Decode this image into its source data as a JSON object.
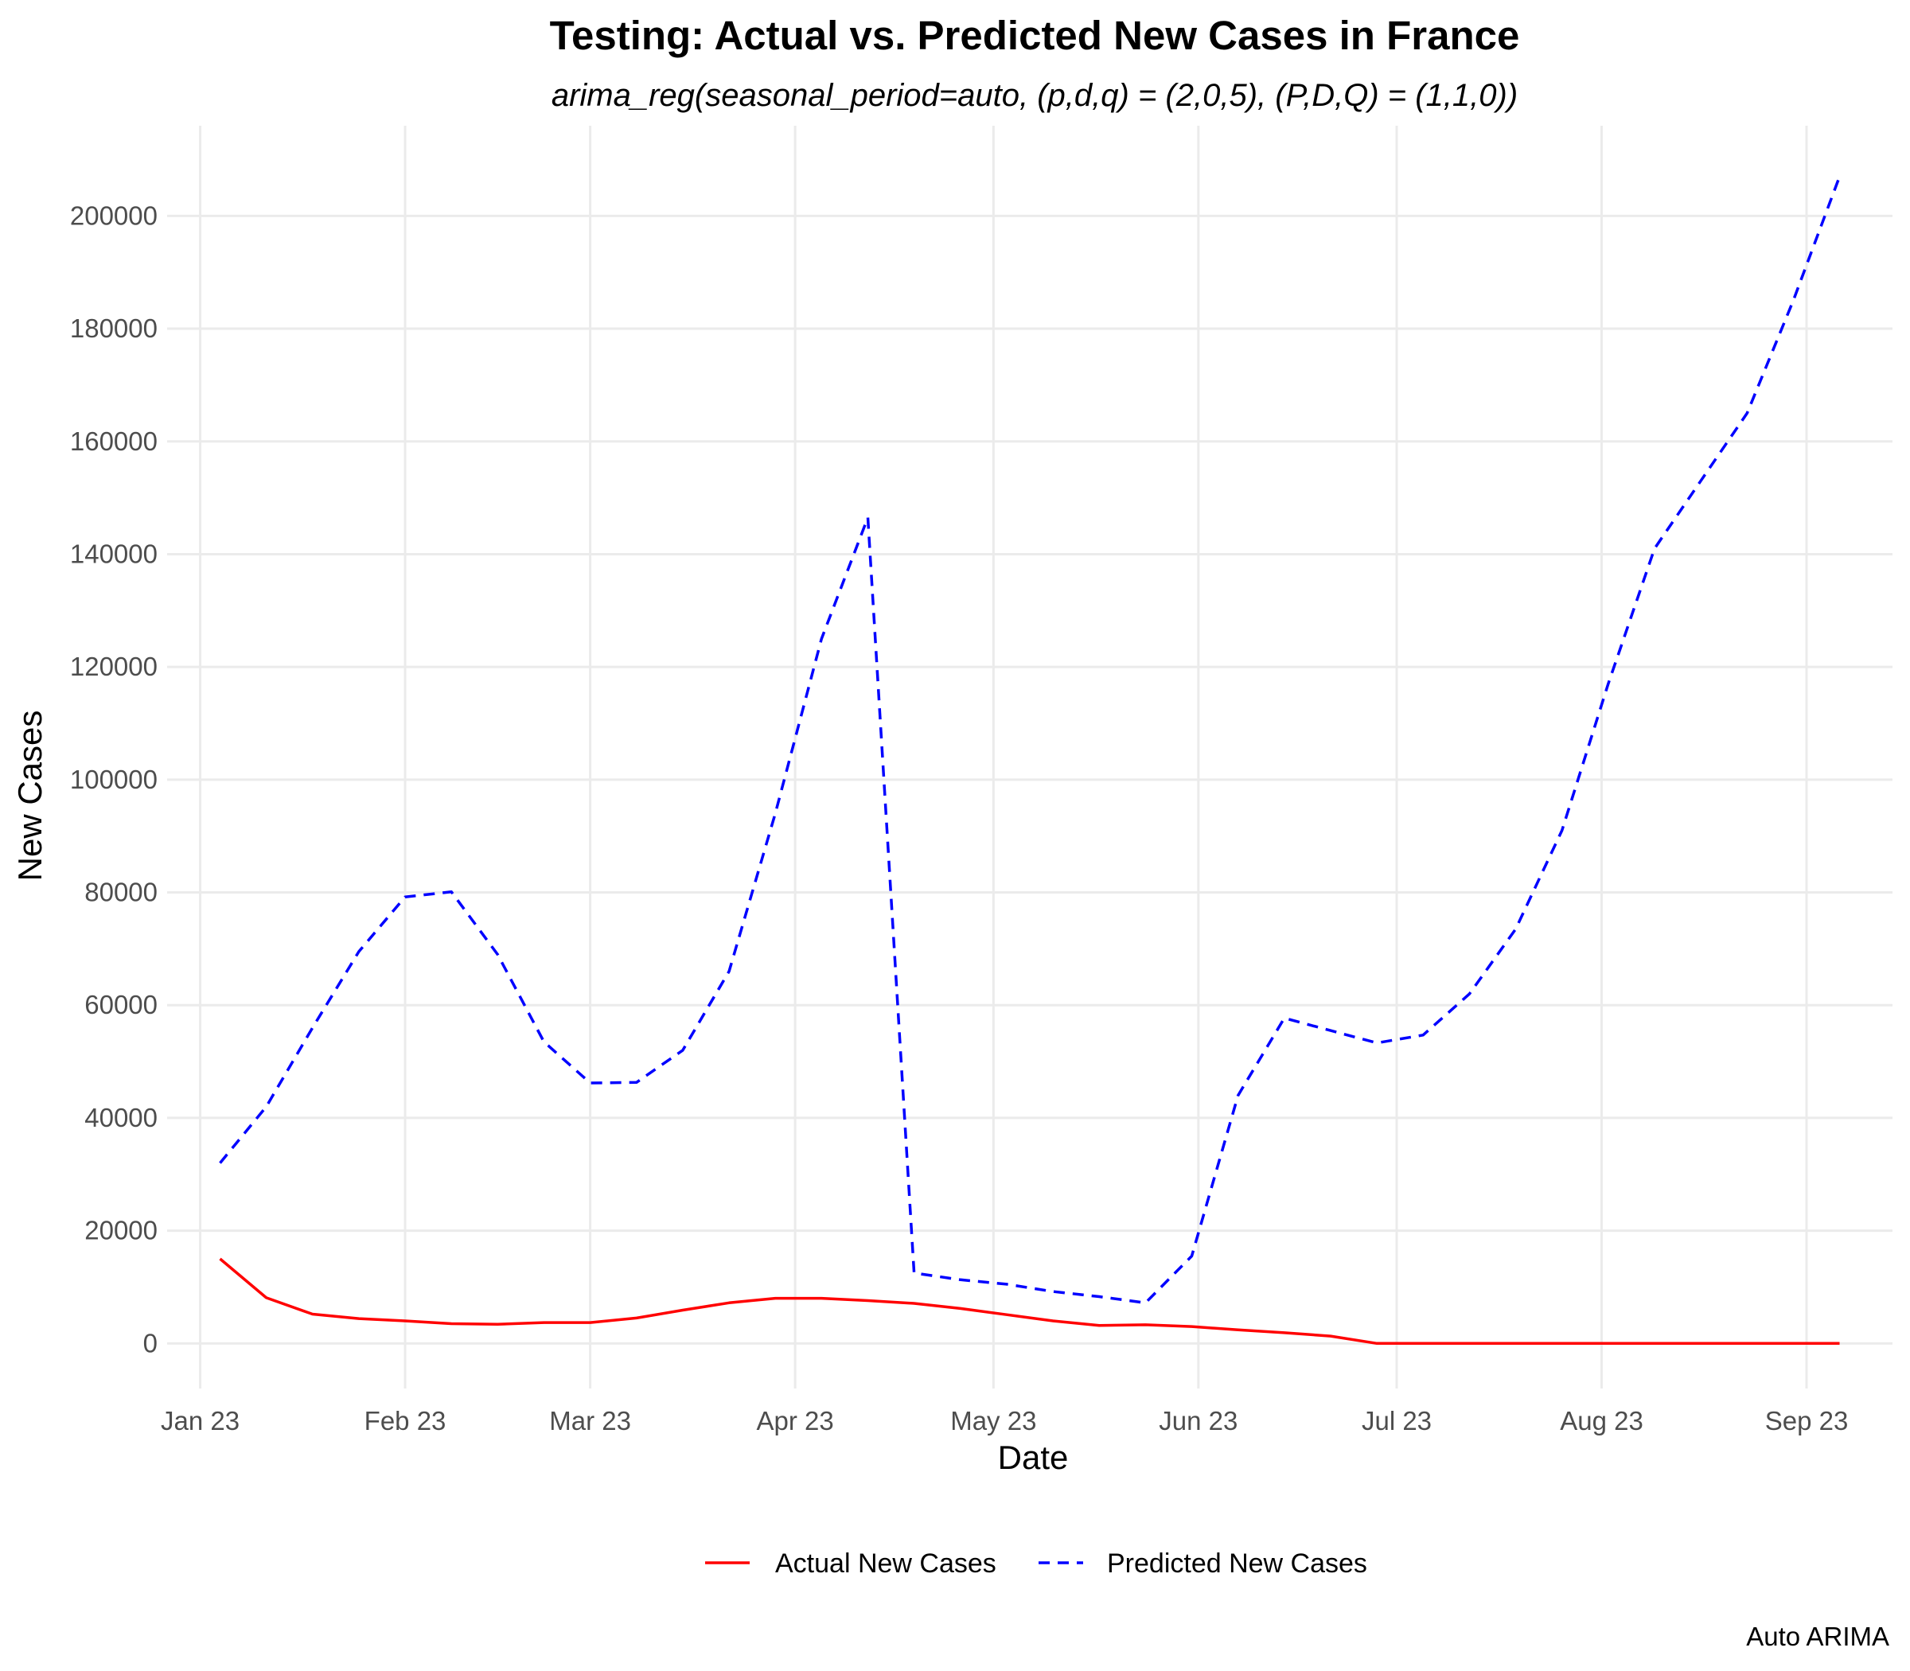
{
  "chart_data": {
    "type": "line",
    "title": "Testing: Actual vs. Predicted New Cases in France",
    "subtitle": "arima_reg(seasonal_period=auto, (p,d,q) = (2,0,5), (P,D,Q) = (1,1,0))",
    "xlabel": "Date",
    "ylabel": "New Cases",
    "caption": "Auto ARIMA",
    "x_tick_labels": [
      "Jan 23",
      "Feb 23",
      "Mar 23",
      "Apr 23",
      "May 23",
      "Jun 23",
      "Jul 23",
      "Aug 23",
      "Sep 23"
    ],
    "x_tick_dates": [
      "2023-01-01",
      "2023-02-01",
      "2023-03-01",
      "2023-04-01",
      "2023-05-01",
      "2023-06-01",
      "2023-07-01",
      "2023-08-01",
      "2023-09-01"
    ],
    "xlim": [
      "2022-12-27",
      "2023-09-14"
    ],
    "y_ticks": [
      0,
      20000,
      40000,
      60000,
      80000,
      100000,
      120000,
      140000,
      160000,
      180000,
      200000
    ],
    "y_tick_labels": [
      "0",
      "20000",
      "40000",
      "60000",
      "80000",
      "100000",
      "120000",
      "140000",
      "160000",
      "180000",
      "200000"
    ],
    "ylim": [
      -8000,
      216000
    ],
    "grid": true,
    "legend_position": "bottom",
    "x": [
      "2023-01-04",
      "2023-01-11",
      "2023-01-18",
      "2023-01-25",
      "2023-02-01",
      "2023-02-08",
      "2023-02-15",
      "2023-02-22",
      "2023-03-01",
      "2023-03-08",
      "2023-03-15",
      "2023-03-22",
      "2023-03-29",
      "2023-04-05",
      "2023-04-12",
      "2023-04-19",
      "2023-04-26",
      "2023-05-03",
      "2023-05-10",
      "2023-05-17",
      "2023-05-24",
      "2023-05-31",
      "2023-06-07",
      "2023-06-14",
      "2023-06-21",
      "2023-06-28",
      "2023-07-05",
      "2023-07-12",
      "2023-07-19",
      "2023-07-26",
      "2023-08-02",
      "2023-08-09",
      "2023-08-16",
      "2023-08-23",
      "2023-08-30",
      "2023-09-06"
    ],
    "series": [
      {
        "name": "Actual New Cases",
        "color": "#ff0000",
        "dash": "solid",
        "values": [
          15000,
          8100,
          5200,
          4400,
          4000,
          3500,
          3400,
          3700,
          3700,
          4500,
          5900,
          7200,
          8000,
          8000,
          7600,
          7100,
          6200,
          5100,
          4000,
          3200,
          3300,
          3000,
          2400,
          1900,
          1300,
          0,
          0,
          0,
          0,
          0,
          0,
          0,
          0,
          0,
          0,
          0
        ]
      },
      {
        "name": "Predicted New Cases",
        "color": "#0000ff",
        "dash": "dashed",
        "values": [
          32000,
          42000,
          56000,
          69500,
          79200,
          80100,
          69000,
          53500,
          46200,
          46300,
          52000,
          66000,
          94000,
          125000,
          146500,
          12500,
          11300,
          10500,
          9200,
          8300,
          7200,
          15500,
          44000,
          57700,
          55500,
          53300,
          54700,
          62000,
          73500,
          91000,
          117000,
          141000,
          153000,
          165000,
          185000,
          207000
        ]
      }
    ]
  }
}
